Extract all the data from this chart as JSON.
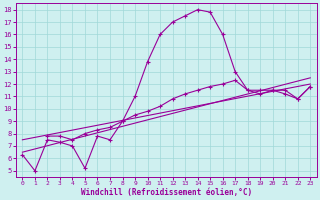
{
  "xlabel": "Windchill (Refroidissement éolien,°C)",
  "background_color": "#cff0f0",
  "grid_color": "#a0d8d8",
  "line_color": "#990099",
  "xlim": [
    -0.5,
    23.5
  ],
  "ylim": [
    4.5,
    18.5
  ],
  "xticks": [
    0,
    1,
    2,
    3,
    4,
    5,
    6,
    7,
    8,
    9,
    10,
    11,
    12,
    13,
    14,
    15,
    16,
    17,
    18,
    19,
    20,
    21,
    22,
    23
  ],
  "yticks": [
    5,
    6,
    7,
    8,
    9,
    10,
    11,
    12,
    13,
    14,
    15,
    16,
    17,
    18
  ],
  "series": [
    {
      "x": [
        0,
        1,
        2,
        3,
        4,
        5,
        6,
        7,
        8,
        9,
        10,
        11,
        12,
        13,
        14,
        15,
        16,
        17,
        18,
        19,
        20,
        21,
        22,
        23
      ],
      "y": [
        6.3,
        5.0,
        7.5,
        7.3,
        7.0,
        5.2,
        7.8,
        7.5,
        9.0,
        11.0,
        13.8,
        16.0,
        17.0,
        17.5,
        18.0,
        17.8,
        16.0,
        13.0,
        11.5,
        11.2,
        11.5,
        11.2,
        10.8,
        11.8
      ],
      "marker": true
    },
    {
      "x": [
        2,
        3,
        4,
        5,
        6,
        7,
        8,
        9,
        10,
        11,
        12,
        13,
        14,
        15,
        16,
        17,
        18,
        19,
        20,
        21,
        22,
        23
      ],
      "y": [
        7.8,
        7.8,
        7.5,
        8.0,
        8.3,
        8.5,
        9.0,
        9.5,
        9.8,
        10.2,
        10.8,
        11.2,
        11.5,
        11.8,
        12.0,
        12.3,
        11.5,
        11.5,
        11.5,
        11.5,
        10.8,
        11.8
      ],
      "marker": true
    },
    {
      "x": [
        0,
        23
      ],
      "y": [
        6.5,
        12.5
      ],
      "marker": false
    },
    {
      "x": [
        0,
        23
      ],
      "y": [
        7.5,
        12.0
      ],
      "marker": false
    }
  ]
}
